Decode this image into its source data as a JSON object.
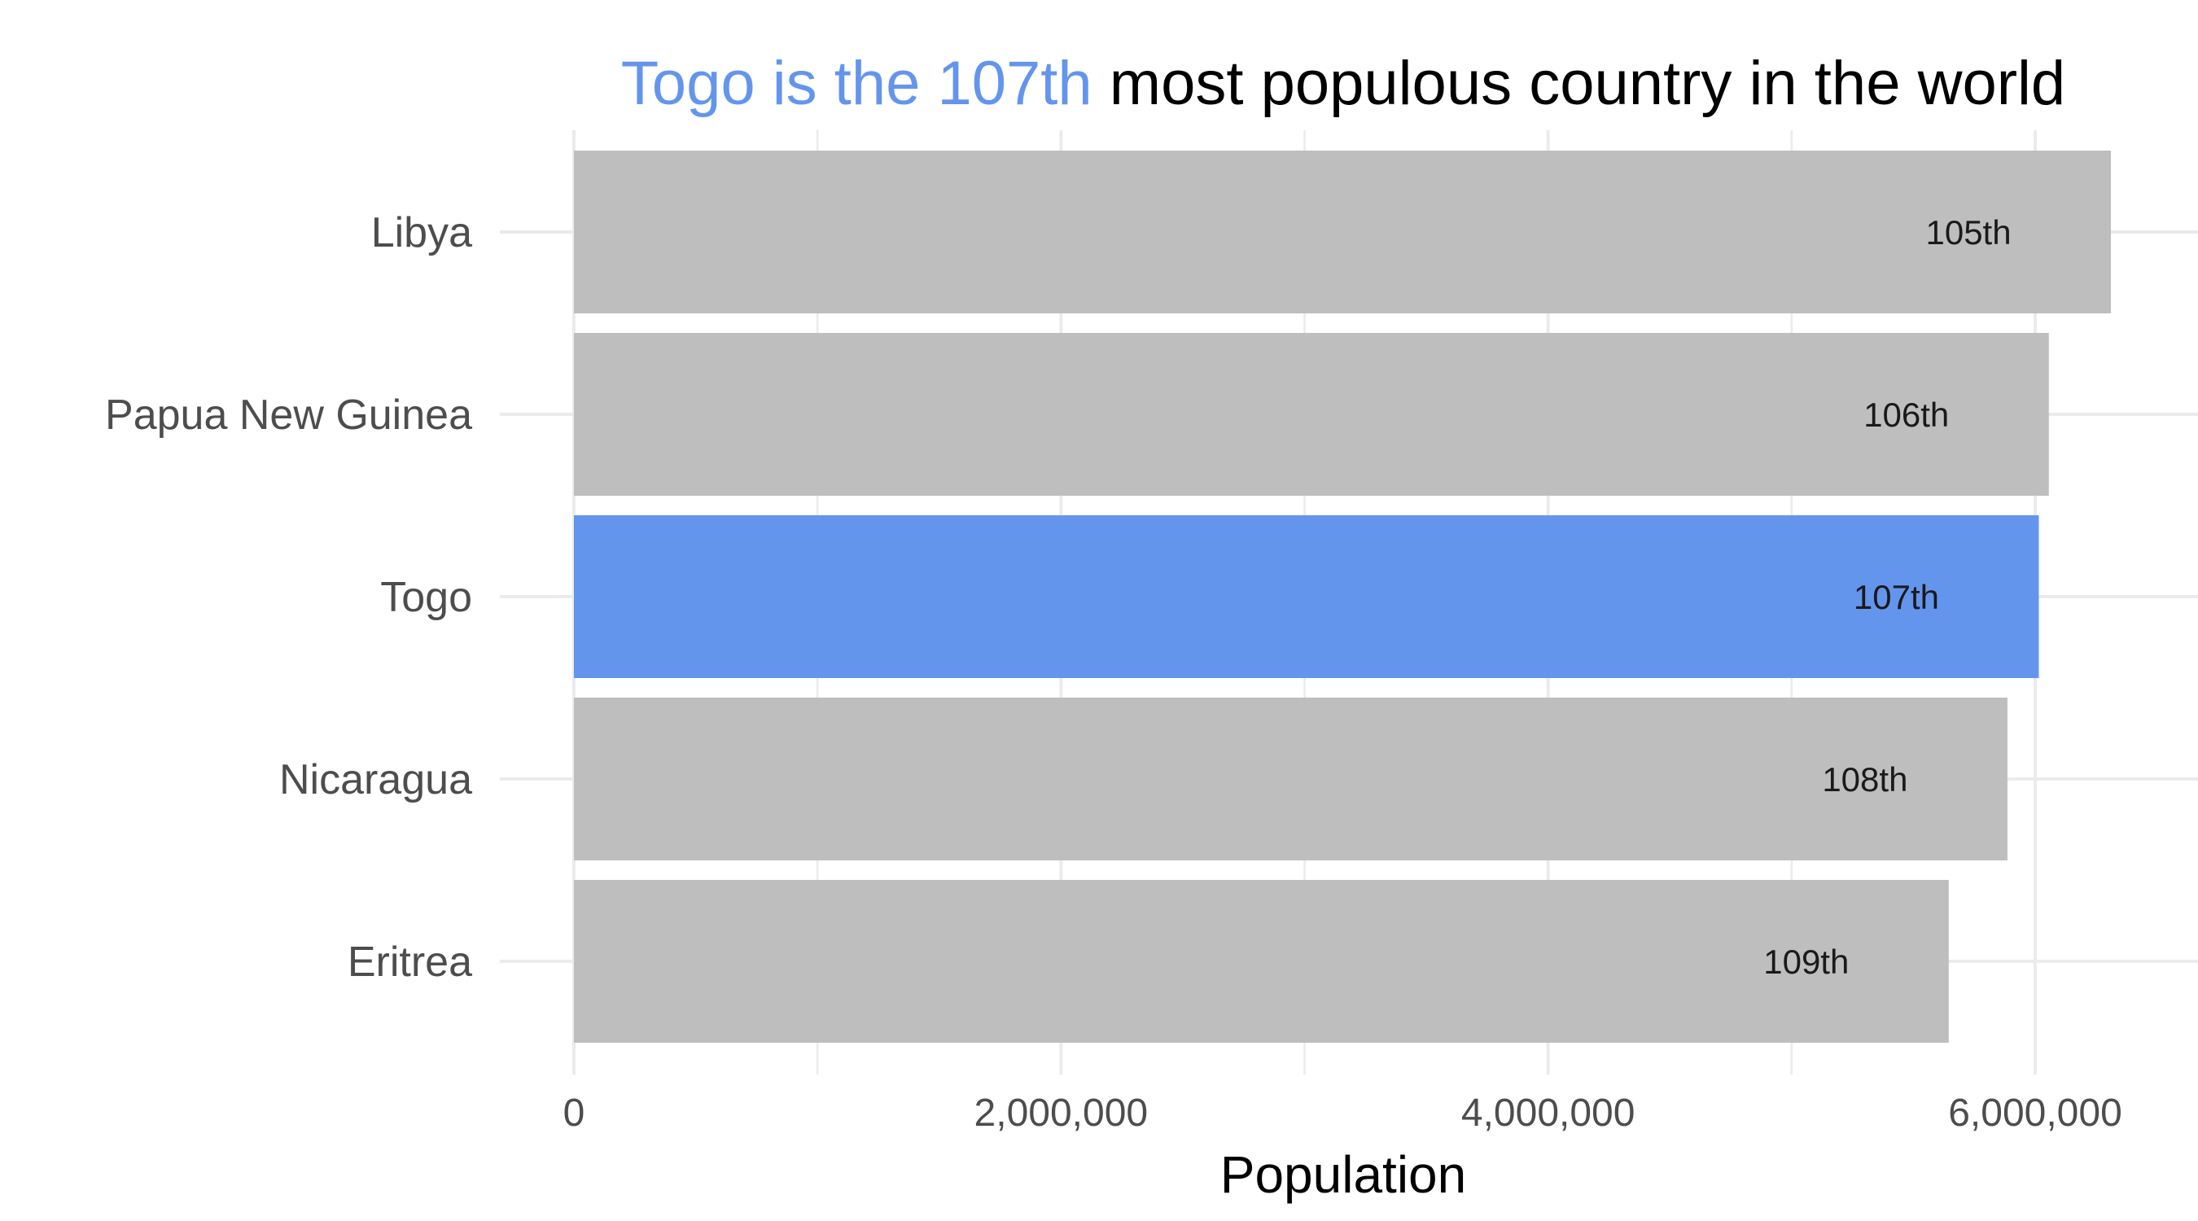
{
  "chart_data": {
    "type": "bar",
    "orientation": "horizontal",
    "title": {
      "highlight": "Togo is the 107th",
      "rest": " most populous country in the world"
    },
    "xlabel": "Population",
    "ylabel": "",
    "xlim": [
      0,
      6650000
    ],
    "x_ticks": [
      {
        "value": 0,
        "label": "0"
      },
      {
        "value": 2000000,
        "label": "2,000,000"
      },
      {
        "value": 4000000,
        "label": "4,000,000"
      },
      {
        "value": 6000000,
        "label": "6,000,000"
      }
    ],
    "x_minor_ticks": [
      1000000,
      3000000,
      5000000
    ],
    "categories": [
      "Libya",
      "Papua New Guinea",
      "Togo",
      "Nicaragua",
      "Eritrea"
    ],
    "values": [
      6311000,
      6056000,
      6015000,
      5886000,
      5645000
    ],
    "bar_labels": [
      "105th",
      "106th",
      "107th",
      "108th",
      "109th"
    ],
    "highlight_category": "Togo",
    "grid": true,
    "legend": "none",
    "colors": {
      "highlight": "#6495ED",
      "default": "#BEBEBE",
      "grid": "#EBEBEB",
      "title_rest": "#000000"
    }
  }
}
